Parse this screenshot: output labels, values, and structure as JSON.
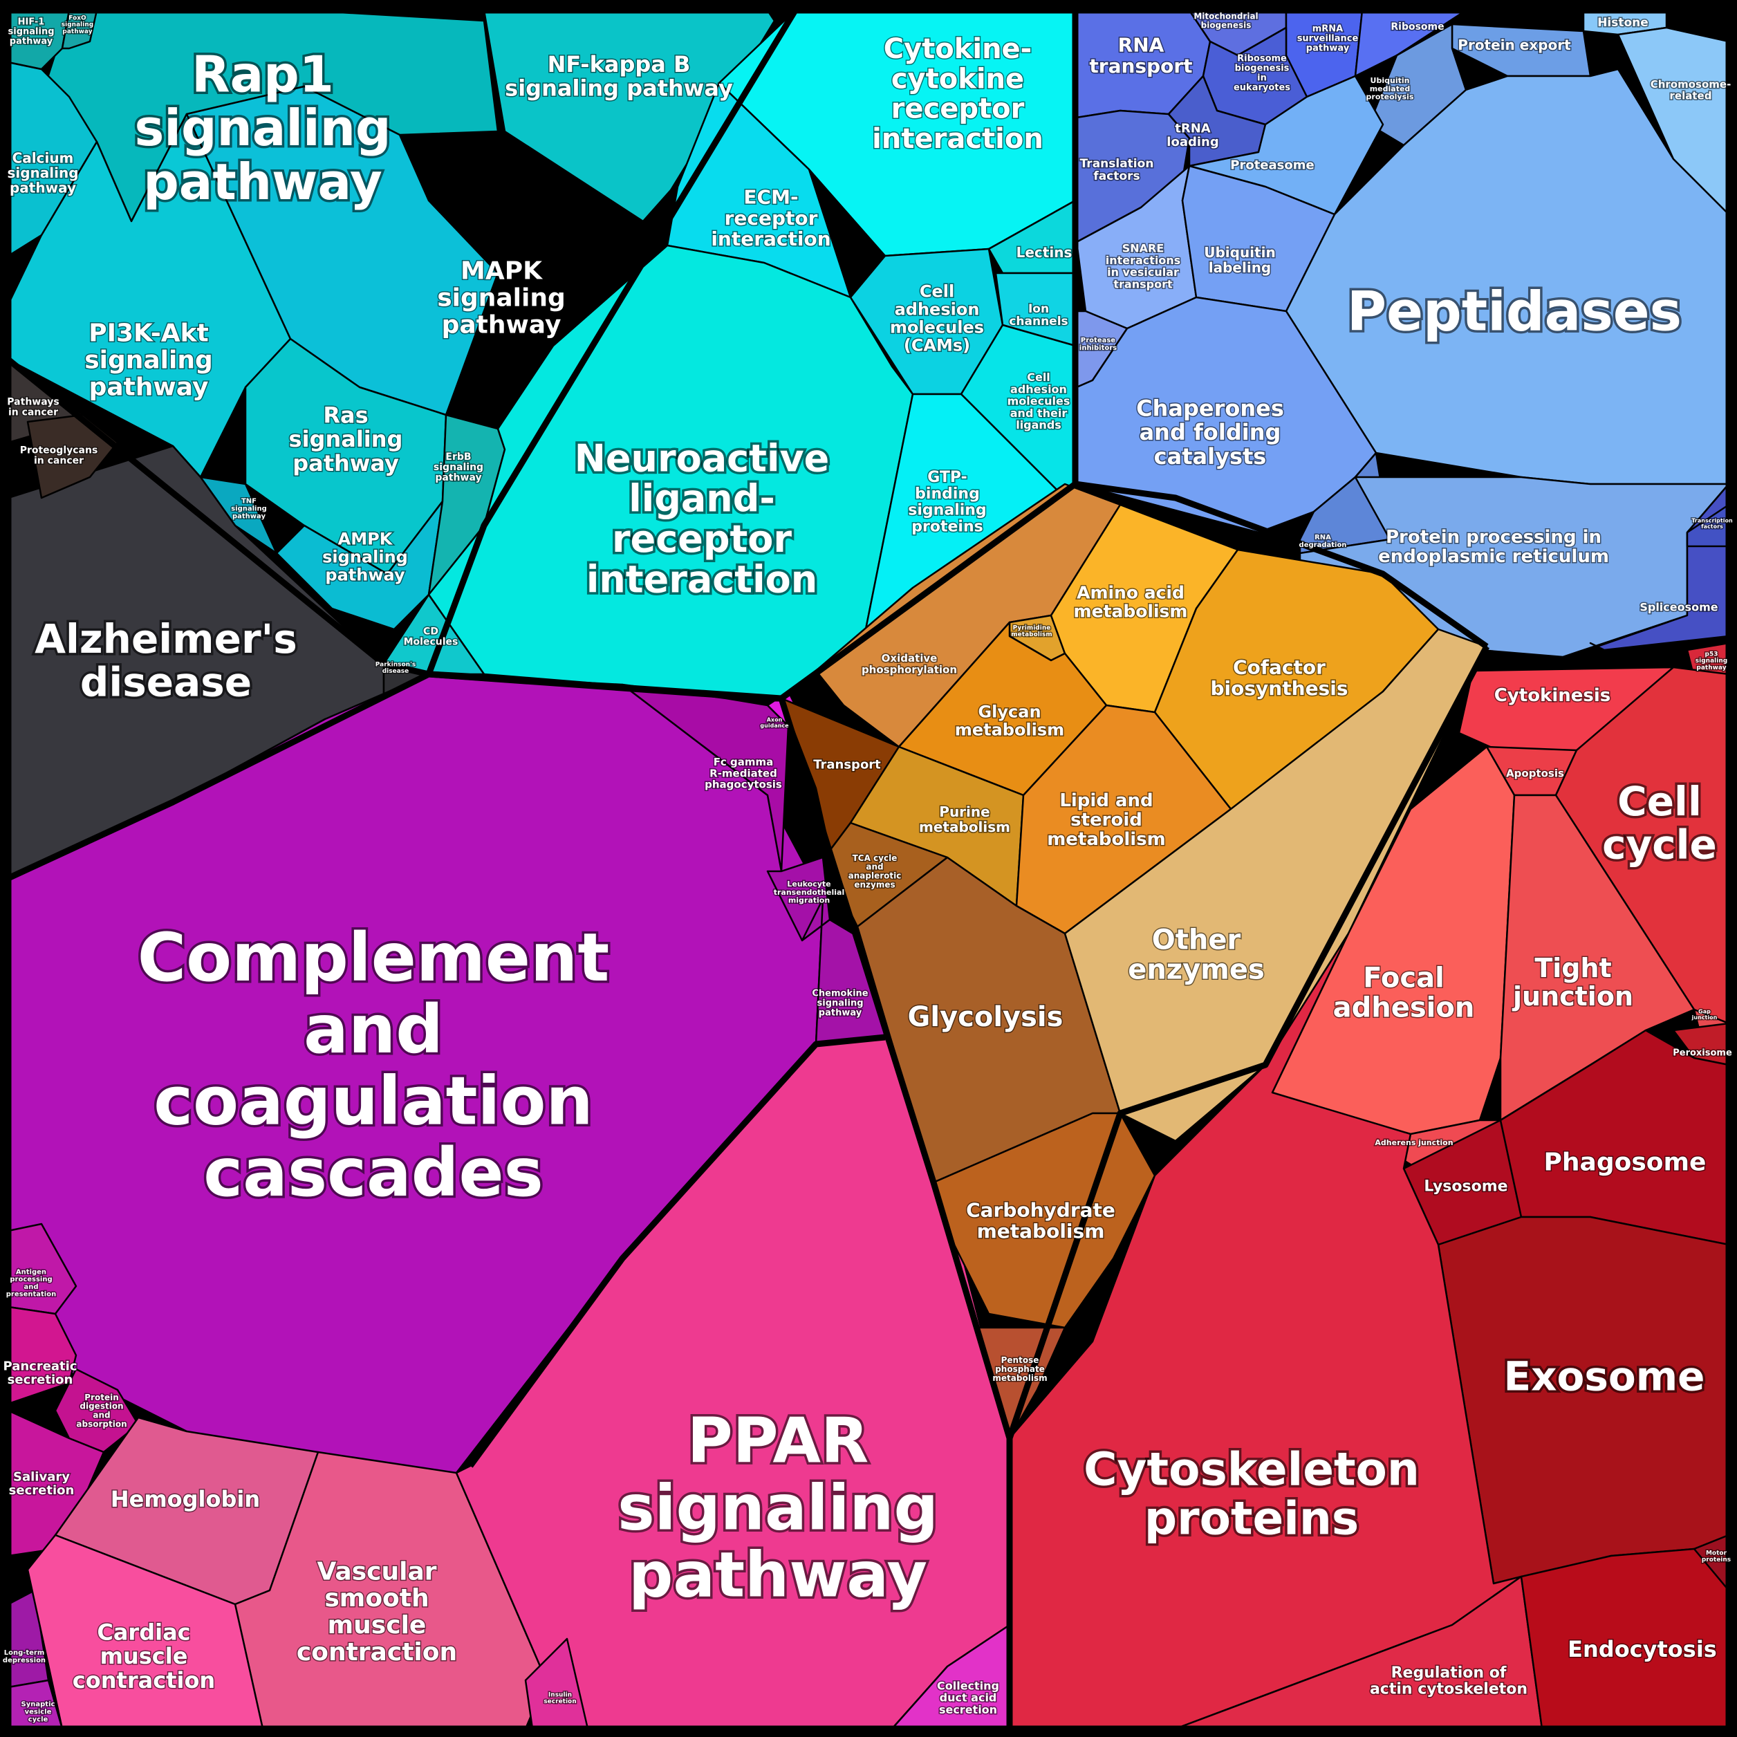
{
  "groups": {
    "signaling": "#14c6d2",
    "metabolism": "#e89a2a",
    "genetic_information": "#6f8ff2",
    "cellular_processes": "#e0283d",
    "organismal_systems": "#c21ab8",
    "human_diseases": "#3a3a42"
  },
  "cells": [
    {
      "name": "Rap1 signaling pathway",
      "lines": [
        "Rap1",
        "signaling",
        "pathway"
      ],
      "color": "#06b8bc"
    },
    {
      "name": "NF-kappa B signaling pathway",
      "lines": [
        "NF-kappa B",
        "signaling pathway"
      ],
      "color": "#0ac4c8"
    },
    {
      "name": "PI3K-Akt signaling pathway",
      "lines": [
        "PI3K-Akt",
        "signaling",
        "pathway"
      ],
      "color": "#0ac8d6"
    },
    {
      "name": "MAPK signaling pathway",
      "lines": [
        "MAPK",
        "signaling",
        "pathway"
      ],
      "color": "#0cc0d8"
    },
    {
      "name": "Calcium signaling pathway",
      "lines": [
        "Calcium",
        "signaling",
        "pathway"
      ],
      "color": "#0ac0d0"
    },
    {
      "name": "HIF-1 signaling pathway",
      "lines": [
        "HIF-1",
        "signaling",
        "pathway"
      ],
      "color": "#12a8a8"
    },
    {
      "name": "FoxO signaling pathway",
      "lines": [
        "FoxO",
        "signaling",
        "pathway"
      ],
      "color": "#18a4a6"
    },
    {
      "name": "Ras signaling pathway",
      "lines": [
        "Ras",
        "signaling",
        "pathway"
      ],
      "color": "#08c6cc"
    },
    {
      "name": "AMPK signaling pathway",
      "lines": [
        "AMPK",
        "signaling",
        "pathway"
      ],
      "color": "#0bbcd2"
    },
    {
      "name": "ErbB signaling pathway",
      "lines": [
        "ErbB",
        "signaling",
        "pathway"
      ],
      "color": "#14b4b0"
    },
    {
      "name": "TNF signaling pathway",
      "lines": [
        "TNF",
        "signaling",
        "pathway"
      ],
      "color": "#0aa8c0"
    },
    {
      "name": "Cytokine-cytokine receptor interaction",
      "lines": [
        "Cytokine-",
        "cytokine",
        "receptor",
        "interaction"
      ],
      "color": "#06f4f4"
    },
    {
      "name": "ECM-receptor interaction",
      "lines": [
        "ECM-",
        "receptor",
        "interaction"
      ],
      "color": "#08dcee"
    },
    {
      "name": "Neuroactive ligand-receptor interaction",
      "lines": [
        "Neuroactive",
        "ligand-",
        "receptor",
        "interaction"
      ],
      "color": "#04e8e0"
    },
    {
      "name": "Cell adhesion molecules (CAMs)",
      "lines": [
        "Cell",
        "adhesion",
        "molecules",
        "(CAMs)"
      ],
      "color": "#0cd2e2"
    },
    {
      "name": "Lectins",
      "lines": [
        "Lectins"
      ],
      "color": "#0cd8dc"
    },
    {
      "name": "Ion channels",
      "lines": [
        "Ion",
        "channels"
      ],
      "color": "#10d4e4"
    },
    {
      "name": "Cell adhesion molecules and their ligands",
      "lines": [
        "Cell",
        "adhesion",
        "molecules",
        "and their",
        "ligands"
      ],
      "color": "#06e4e8"
    },
    {
      "name": "GTP-binding signaling proteins",
      "lines": [
        "GTP-",
        "binding",
        "signaling",
        "proteins"
      ],
      "color": "#04f0f6"
    },
    {
      "name": "CD Molecules",
      "lines": [
        "CD",
        "Molecules"
      ],
      "color": "#10c8cc"
    },
    {
      "name": "Alzheimer's disease",
      "lines": [
        "Alzheimer's",
        "disease"
      ],
      "color": "#38383e"
    },
    {
      "name": "Pathways in cancer",
      "lines": [
        "Pathways",
        "in cancer"
      ],
      "color": "#3a3434"
    },
    {
      "name": "Proteoglycans in cancer",
      "lines": [
        "Proteoglycans",
        "in cancer"
      ],
      "color": "#3a2c26"
    },
    {
      "name": "Parkinson's disease",
      "lines": [
        "Parkinson's",
        "disease"
      ],
      "color": "#303034"
    },
    {
      "name": "Complement and coagulation cascades",
      "lines": [
        "Complement",
        "and",
        "coagulation",
        "cascades"
      ],
      "color": "#b212b8"
    },
    {
      "name": "Fc gamma R-mediated phagocytosis",
      "lines": [
        "Fc gamma",
        "R-mediated",
        "phagocytosis"
      ],
      "color": "#a80ca6"
    },
    {
      "name": "Leukocyte transendothelial migration",
      "lines": [
        "Leukocyte",
        "transendothelial",
        "migration"
      ],
      "color": "#a410a8"
    },
    {
      "name": "Chemokine signaling pathway",
      "lines": [
        "Chemokine",
        "signaling",
        "pathway"
      ],
      "color": "#a412a8"
    },
    {
      "name": "Antigen processing and presentation",
      "lines": [
        "Antigen",
        "processing",
        "and",
        "presentation"
      ],
      "color": "#c018a8"
    },
    {
      "name": "Axon guidance",
      "lines": [
        "Axon",
        "guidance"
      ],
      "color": "#e01ae0"
    },
    {
      "name": "Pancreatic secretion",
      "lines": [
        "Pancreatic",
        "secretion"
      ],
      "color": "#d21690"
    },
    {
      "name": "Protein digestion and absorption",
      "lines": [
        "Protein",
        "digestion",
        "and",
        "absorption"
      ],
      "color": "#c41290"
    },
    {
      "name": "Salivary secretion",
      "lines": [
        "Salivary",
        "secretion"
      ],
      "color": "#c8169c"
    },
    {
      "name": "Long-term depression",
      "lines": [
        "Long-term",
        "depression"
      ],
      "color": "#9e1aa6"
    },
    {
      "name": "Synaptic vesicle cycle",
      "lines": [
        "Synaptic",
        "vesicle",
        "cycle"
      ],
      "color": "#b422b4"
    },
    {
      "name": "Hemoglobin",
      "lines": [
        "Hemoglobin"
      ],
      "color": "#e05a90"
    },
    {
      "name": "Vascular smooth muscle contraction",
      "lines": [
        "Vascular",
        "smooth",
        "muscle",
        "contraction"
      ],
      "color": "#e8588a"
    },
    {
      "name": "Cardiac muscle contraction",
      "lines": [
        "Cardiac",
        "muscle",
        "contraction"
      ],
      "color": "#f84e9e"
    },
    {
      "name": "PPAR signaling pathway",
      "lines": [
        "PPAR",
        "signaling",
        "pathway"
      ],
      "color": "#ee3a90"
    },
    {
      "name": "Insulin secretion",
      "lines": [
        "Insulin",
        "secretion"
      ],
      "color": "#e0309a"
    },
    {
      "name": "Collecting duct acid secretion",
      "lines": [
        "Collecting",
        "duct acid",
        "secretion"
      ],
      "color": "#e232c8"
    },
    {
      "name": "RNA transport",
      "lines": [
        "RNA",
        "transport"
      ],
      "color": "#5a70e6"
    },
    {
      "name": "Mitochondrial biogenesis",
      "lines": [
        "Mitochondrial",
        "biogenesis"
      ],
      "color": "#5e6fe0"
    },
    {
      "name": "mRNA surveillance pathway",
      "lines": [
        "mRNA",
        "surveillance",
        "pathway"
      ],
      "color": "#4c64ee"
    },
    {
      "name": "Ribosome",
      "lines": [
        "Ribosome"
      ],
      "color": "#5870f2"
    },
    {
      "name": "Ribosome biogenesis in eukaryotes",
      "lines": [
        "Ribosome",
        "biogenesis",
        "in",
        "eukaryotes"
      ],
      "color": "#4a5ed6"
    },
    {
      "name": "Translation factors",
      "lines": [
        "Translation",
        "factors"
      ],
      "color": "#5870da"
    },
    {
      "name": "tRNA loading",
      "lines": [
        "tRNA",
        "loading"
      ],
      "color": "#4a5ecc"
    },
    {
      "name": "Histone",
      "lines": [
        "Histone"
      ],
      "color": "#88c8f8"
    },
    {
      "name": "Protein export",
      "lines": [
        "Protein export"
      ],
      "color": "#6c9ee6"
    },
    {
      "name": "Ubiquitin mediated proteolysis",
      "lines": [
        "Ubiquitin",
        "mediated",
        "proteolysis"
      ],
      "color": "#6c9ae0"
    },
    {
      "name": "Chromosome-related",
      "lines": [
        "Chromosome-",
        "related"
      ],
      "color": "#8cc8f8"
    },
    {
      "name": "Proteasome",
      "lines": [
        "Proteasome"
      ],
      "color": "#72b0f6"
    },
    {
      "name": "Peptidases",
      "lines": [
        "Peptidases"
      ],
      "color": "#7cb4f4"
    },
    {
      "name": "SNARE interactions in vesicular transport",
      "lines": [
        "SNARE",
        "interactions",
        "in vesicular",
        "transport"
      ],
      "color": "#88aef8"
    },
    {
      "name": "Ubiquitin labeling",
      "lines": [
        "Ubiquitin",
        "labeling"
      ],
      "color": "#74a0f4"
    },
    {
      "name": "Protease inhibitors",
      "lines": [
        "Protease",
        "inhibitors"
      ],
      "color": "#7e98ec"
    },
    {
      "name": "Chaperones and folding catalysts",
      "lines": [
        "Chaperones",
        "and folding",
        "catalysts"
      ],
      "color": "#74a0f4"
    },
    {
      "name": "RNA degradation",
      "lines": [
        "RNA",
        "degradation"
      ],
      "color": "#5d86d8"
    },
    {
      "name": "Protein processing in endoplasmic reticulum",
      "lines": [
        "Protein processing in",
        "endoplasmic reticulum"
      ],
      "color": "#7aaaec"
    },
    {
      "name": "Spliceosome",
      "lines": [
        "Spliceosome"
      ],
      "color": "#4650c4"
    },
    {
      "name": "Transcription factors",
      "lines": [
        "Transcription",
        "factors"
      ],
      "color": "#4252c4"
    },
    {
      "name": "Oxidative phosphorylation",
      "lines": [
        "Oxidative",
        "phosphorylation"
      ],
      "color": "#d8893c"
    },
    {
      "name": "Pyrimidine metabolism",
      "lines": [
        "Pyrimidine",
        "metabolism"
      ],
      "color": "#e2a22c"
    },
    {
      "name": "Amino acid metabolism",
      "lines": [
        "Amino acid",
        "metabolism"
      ],
      "color": "#fbb428"
    },
    {
      "name": "Cofactor biosynthesis",
      "lines": [
        "Cofactor",
        "biosynthesis"
      ],
      "color": "#eea21c"
    },
    {
      "name": "Glycan metabolism",
      "lines": [
        "Glycan",
        "metabolism"
      ],
      "color": "#e88e14"
    },
    {
      "name": "Transport",
      "lines": [
        "Transport"
      ],
      "color": "#8a3c04"
    },
    {
      "name": "Purine metabolism",
      "lines": [
        "Purine",
        "metabolism"
      ],
      "color": "#d49422"
    },
    {
      "name": "Lipid and steroid metabolism",
      "lines": [
        "Lipid and",
        "steroid",
        "metabolism"
      ],
      "color": "#ea8c22"
    },
    {
      "name": "TCA cycle and anaplerotic enzymes",
      "lines": [
        "TCA cycle",
        "and",
        "anaplerotic",
        "enzymes"
      ],
      "color": "#a8601e"
    },
    {
      "name": "Glycolysis",
      "lines": [
        "Glycolysis"
      ],
      "color": "#a86028"
    },
    {
      "name": "Other enzymes",
      "lines": [
        "Other",
        "enzymes"
      ],
      "color": "#e2b874"
    },
    {
      "name": "Carbohydrate metabolism",
      "lines": [
        "Carbohydrate",
        "metabolism"
      ],
      "color": "#bc621e"
    },
    {
      "name": "Pentose phosphate metabolism",
      "lines": [
        "Pentose",
        "phosphate",
        "metabolism"
      ],
      "color": "#b85030"
    },
    {
      "name": "p53 signaling pathway",
      "lines": [
        "p53",
        "signaling",
        "pathway"
      ],
      "color": "#d8283a"
    },
    {
      "name": "Cytokinesis",
      "lines": [
        "Cytokinesis"
      ],
      "color": "#f23c4c"
    },
    {
      "name": "Apoptosis",
      "lines": [
        "Apoptosis"
      ],
      "color": "#ec3e48"
    },
    {
      "name": "Cell cycle",
      "lines": [
        "Cell",
        "cycle"
      ],
      "color": "#e2323c"
    },
    {
      "name": "Focal adhesion",
      "lines": [
        "Focal",
        "adhesion"
      ],
      "color": "#fb5f5a"
    },
    {
      "name": "Tight junction",
      "lines": [
        "Tight",
        "junction"
      ],
      "color": "#ee4e52"
    },
    {
      "name": "Gap junction",
      "lines": [
        "Gap",
        "junction"
      ],
      "color": "#e84a50"
    },
    {
      "name": "Peroxisome",
      "lines": [
        "Peroxisome"
      ],
      "color": "#c01c28"
    },
    {
      "name": "Adherens junction",
      "lines": [
        "Adherens junction"
      ],
      "color": "#f04a52"
    },
    {
      "name": "Lysosome",
      "lines": [
        "Lysosome"
      ],
      "color": "#b00c20"
    },
    {
      "name": "Phagosome",
      "lines": [
        "Phagosome"
      ],
      "color": "#b20c1e"
    },
    {
      "name": "Exosome",
      "lines": [
        "Exosome"
      ],
      "color": "#a8121a"
    },
    {
      "name": "Cytoskeleton proteins",
      "lines": [
        "Cytoskeleton",
        "proteins"
      ],
      "color": "#e02844"
    },
    {
      "name": "Motor proteins",
      "lines": [
        "Motor",
        "proteins"
      ],
      "color": "#9c1020"
    },
    {
      "name": "Regulation of actin cytoskeleton",
      "lines": [
        "Regulation of",
        "actin cytoskeleton"
      ],
      "color": "#e02a48"
    },
    {
      "name": "Endocytosis",
      "lines": [
        "Endocytosis"
      ],
      "color": "#b80c1a"
    }
  ]
}
